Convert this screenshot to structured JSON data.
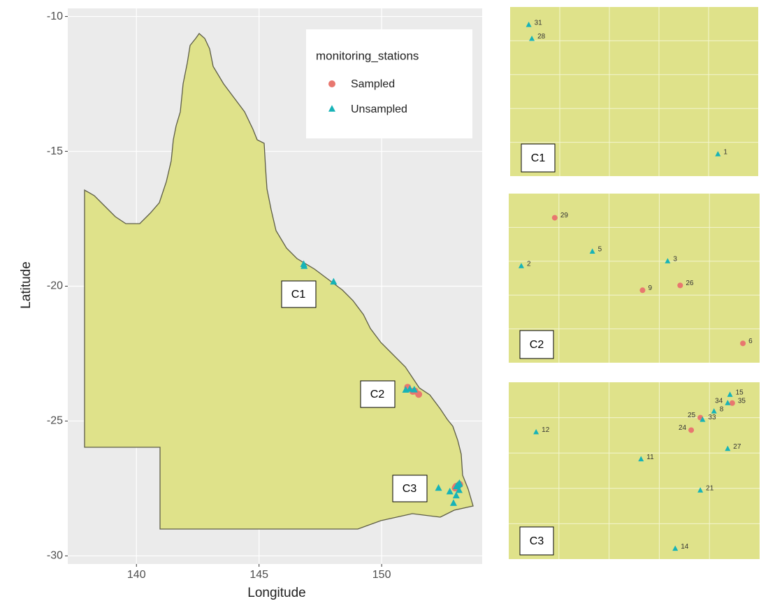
{
  "chart_data": [
    {
      "type": "map",
      "xlabel": "Longitude",
      "ylabel": "Latitude",
      "xlim": [
        137.2,
        154.1
      ],
      "ylim": [
        -30.3,
        -9.7
      ],
      "xticks": [
        140,
        145,
        150
      ],
      "yticks": [
        -10,
        -15,
        -20,
        -25,
        -30
      ],
      "grid": true,
      "legend_title": "monitoring_stations",
      "legend_position": "top-right",
      "series": [
        {
          "name": "Sampled",
          "color": "#e8776f",
          "shape": "circle"
        },
        {
          "name": "Unsampled",
          "color": "#17b3b7",
          "shape": "triangle"
        }
      ]
    },
    {
      "type": "scatter",
      "title": "C1",
      "xlim": [
        146.7,
        148.3
      ],
      "ylim": [
        -19.95,
        -19.1
      ],
      "series": [
        {
          "x": [],
          "values": [],
          "labels": []
        },
        {
          "x": [
            146.82,
            146.84,
            148.04
          ],
          "values": [
            -19.19,
            -19.26,
            -19.84
          ],
          "labels": [
            "31",
            "28",
            "1"
          ]
        }
      ]
    },
    {
      "type": "scatter",
      "title": "C2",
      "xlim": [
        150.95,
        151.55
      ],
      "ylim": [
        -24.05,
        -23.7
      ],
      "series": [
        {
          "x": [
            151.06,
            151.27,
            151.36,
            151.51
          ],
          "values": [
            -23.75,
            -23.9,
            -23.89,
            -24.01
          ],
          "labels": [
            "29",
            "9",
            "26",
            "6"
          ]
        },
        {
          "x": [
            151.15,
            150.98,
            151.33
          ],
          "values": [
            -23.82,
            -23.85,
            -23.84
          ],
          "labels": [
            "5",
            "2",
            "3"
          ]
        }
      ]
    },
    {
      "type": "scatter",
      "title": "C3",
      "xlim": [
        152.2,
        153.3
      ],
      "ylim": [
        -28.1,
        -27.25
      ],
      "series": [
        {
          "x": [
            153.04,
            153.0,
            153.18
          ],
          "values": [
            -27.42,
            -27.48,
            -27.35
          ],
          "labels": [
            "25",
            "24",
            "35"
          ]
        },
        {
          "x": [
            152.32,
            153.05,
            153.1,
            153.16,
            153.17,
            153.16,
            152.78,
            153.04,
            152.93
          ],
          "values": [
            -27.49,
            -27.43,
            -27.39,
            -27.35,
            -27.31,
            -27.57,
            -27.62,
            -27.77,
            -28.05
          ],
          "labels": [
            "12",
            "33",
            "8",
            "34",
            "15",
            "27",
            "11",
            "21",
            "14"
          ]
        }
      ]
    }
  ]
}
